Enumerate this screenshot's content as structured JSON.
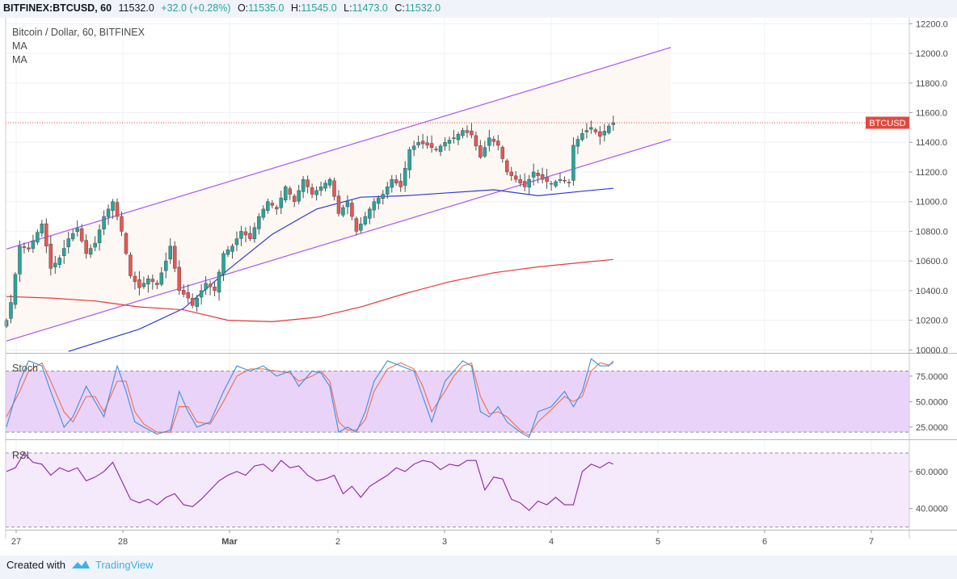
{
  "header": {
    "symbol": "BITFINEX:BTCUSD, 60",
    "last": "11532.0",
    "change": "+32.0 (+0.28%)",
    "o_label": "O:",
    "o_value": "11535.0",
    "h_label": "H:",
    "h_value": "11545.0",
    "l_label": "L:",
    "l_value": "11473.0",
    "c_label": "C:",
    "c_value": "11532.0"
  },
  "legend": {
    "title": "Bitcoin / Dollar, 60, BITFINEX",
    "ma1": "MA",
    "ma2": "MA",
    "stoch": "Stoch",
    "rsi": "RSI"
  },
  "price_tag": "BTCUSD",
  "footer": {
    "created_with": "Created with",
    "brand": "TradingView"
  },
  "colors": {
    "up": "#26a69a",
    "down": "#ef5350",
    "channel": "#a855f7",
    "ma_fast": "#2e3ad6",
    "ma_slow": "#e53935",
    "stoch_k": "#3d8de0",
    "stoch_d": "#f06d4d",
    "rsi": "#8e24aa",
    "band_stoch": "#e6cbf8",
    "band_rsi": "#f3e5fb"
  },
  "chart_data": [
    {
      "type": "candlestick",
      "title": "Bitcoin / Dollar, 60, BITFINEX",
      "x_ticks": [
        "27",
        "28",
        "Mar",
        "2",
        "3",
        "4",
        "5",
        "6",
        "7"
      ],
      "y_ticks": [
        10000,
        10200,
        10400,
        10600,
        10800,
        11000,
        11200,
        11400,
        11600,
        11800,
        12000,
        12200
      ],
      "y_tick_labels": [
        "10000.0",
        "10200.0",
        "10400.0",
        "10600.0",
        "10800.0",
        "11000.0",
        "11200.0",
        "11400.0",
        "11600.0",
        "11800.0",
        "12000.0",
        "12200.0"
      ],
      "ylim": [
        9980,
        12240
      ],
      "last_price": 11532,
      "anchors": [
        [
          0,
          10200
        ],
        [
          1,
          10320
        ],
        [
          3,
          10700
        ],
        [
          5,
          10680
        ],
        [
          8,
          10850
        ],
        [
          10,
          10550
        ],
        [
          12,
          10620
        ],
        [
          14,
          10750
        ],
        [
          16,
          10820
        ],
        [
          18,
          10650
        ],
        [
          20,
          10720
        ],
        [
          22,
          10900
        ],
        [
          24,
          11000
        ],
        [
          26,
          10800
        ],
        [
          28,
          10500
        ],
        [
          30,
          10420
        ],
        [
          32,
          10480
        ],
        [
          34,
          10440
        ],
        [
          36,
          10600
        ],
        [
          37,
          10700
        ],
        [
          39,
          10400
        ],
        [
          41,
          10350
        ],
        [
          42,
          10300
        ],
        [
          45,
          10450
        ],
        [
          47,
          10400
        ],
        [
          49,
          10650
        ],
        [
          51,
          10700
        ],
        [
          53,
          10800
        ],
        [
          55,
          10750
        ],
        [
          57,
          10900
        ],
        [
          59,
          11000
        ],
        [
          61,
          10950
        ],
        [
          63,
          11100
        ],
        [
          65,
          11000
        ],
        [
          67,
          11150
        ],
        [
          69,
          11050
        ],
        [
          71,
          11100
        ],
        [
          73,
          11150
        ],
        [
          75,
          10920
        ],
        [
          77,
          11000
        ],
        [
          79,
          10800
        ],
        [
          81,
          10900
        ],
        [
          83,
          11000
        ],
        [
          85,
          11050
        ],
        [
          87,
          11150
        ],
        [
          89,
          11100
        ],
        [
          91,
          11350
        ],
        [
          93,
          11400
        ],
        [
          95,
          11380
        ],
        [
          97,
          11350
        ],
        [
          99,
          11400
        ],
        [
          101,
          11430
        ],
        [
          103,
          11480
        ],
        [
          105,
          11450
        ],
        [
          107,
          11300
        ],
        [
          109,
          11430
        ],
        [
          111,
          11380
        ],
        [
          113,
          11200
        ],
        [
          115,
          11150
        ],
        [
          117,
          11100
        ],
        [
          119,
          11200
        ],
        [
          121,
          11150
        ],
        [
          123,
          11120
        ],
        [
          125,
          11150
        ],
        [
          127,
          11130
        ],
        [
          128,
          11380
        ],
        [
          130,
          11460
        ],
        [
          132,
          11500
        ],
        [
          134,
          11440
        ],
        [
          136,
          11510
        ],
        [
          137,
          11532
        ]
      ],
      "channel": {
        "upper": [
          [
            0,
            10680
          ],
          [
            150,
            12040
          ]
        ],
        "lower": [
          [
            0,
            10060
          ],
          [
            150,
            11420
          ]
        ]
      },
      "ma_fast": [
        [
          14,
          9990
        ],
        [
          30,
          10140
        ],
        [
          40,
          10280
        ],
        [
          50,
          10540
        ],
        [
          60,
          10780
        ],
        [
          70,
          10950
        ],
        [
          80,
          11030
        ],
        [
          90,
          11040
        ],
        [
          100,
          11060
        ],
        [
          110,
          11080
        ],
        [
          120,
          11040
        ],
        [
          130,
          11070
        ],
        [
          137,
          11090
        ]
      ],
      "ma_slow": [
        [
          0,
          10360
        ],
        [
          10,
          10350
        ],
        [
          20,
          10330
        ],
        [
          30,
          10290
        ],
        [
          40,
          10270
        ],
        [
          50,
          10200
        ],
        [
          60,
          10190
        ],
        [
          70,
          10220
        ],
        [
          80,
          10290
        ],
        [
          90,
          10380
        ],
        [
          100,
          10460
        ],
        [
          110,
          10520
        ],
        [
          120,
          10560
        ],
        [
          130,
          10590
        ],
        [
          137,
          10610
        ]
      ]
    },
    {
      "type": "line",
      "title": "Stoch",
      "y_ticks": [
        25,
        50,
        75
      ],
      "y_tick_labels": [
        "25.0000",
        "50.0000",
        "75.0000"
      ],
      "ylim": [
        13,
        97
      ],
      "band": [
        20,
        80
      ],
      "series": [
        {
          "values": [
            [
              0,
              25
            ],
            [
              3,
              70
            ],
            [
              5,
              90
            ],
            [
              8,
              85
            ],
            [
              10,
              60
            ],
            [
              13,
              25
            ],
            [
              15,
              35
            ],
            [
              18,
              65
            ],
            [
              20,
              50
            ],
            [
              22,
              35
            ],
            [
              25,
              85
            ],
            [
              27,
              60
            ],
            [
              29,
              30
            ],
            [
              31,
              25
            ],
            [
              34,
              18
            ],
            [
              37,
              22
            ],
            [
              39,
              60
            ],
            [
              41,
              40
            ],
            [
              43,
              25
            ],
            [
              46,
              30
            ],
            [
              49,
              60
            ],
            [
              52,
              85
            ],
            [
              55,
              80
            ],
            [
              58,
              85
            ],
            [
              61,
              75
            ],
            [
              64,
              80
            ],
            [
              66,
              65
            ],
            [
              69,
              80
            ],
            [
              71,
              78
            ],
            [
              73,
              65
            ],
            [
              75,
              20
            ],
            [
              77,
              25
            ],
            [
              79,
              20
            ],
            [
              81,
              40
            ],
            [
              83,
              70
            ],
            [
              86,
              90
            ],
            [
              89,
              85
            ],
            [
              92,
              80
            ],
            [
              94,
              55
            ],
            [
              96,
              30
            ],
            [
              99,
              70
            ],
            [
              101,
              80
            ],
            [
              103,
              90
            ],
            [
              105,
              85
            ],
            [
              107,
              40
            ],
            [
              109,
              35
            ],
            [
              111,
              45
            ],
            [
              113,
              30
            ],
            [
              116,
              20
            ],
            [
              118,
              15
            ],
            [
              120,
              40
            ],
            [
              123,
              45
            ],
            [
              126,
              60
            ],
            [
              128,
              45
            ],
            [
              130,
              60
            ],
            [
              132,
              92
            ],
            [
              134,
              85
            ],
            [
              136,
              85
            ],
            [
              137,
              90
            ]
          ]
        },
        {
          "values": [
            [
              0,
              35
            ],
            [
              3,
              60
            ],
            [
              5,
              80
            ],
            [
              8,
              88
            ],
            [
              10,
              70
            ],
            [
              13,
              40
            ],
            [
              15,
              30
            ],
            [
              18,
              55
            ],
            [
              20,
              55
            ],
            [
              22,
              40
            ],
            [
              25,
              70
            ],
            [
              27,
              70
            ],
            [
              29,
              40
            ],
            [
              31,
              28
            ],
            [
              34,
              20
            ],
            [
              37,
              20
            ],
            [
              39,
              45
            ],
            [
              41,
              45
            ],
            [
              43,
              30
            ],
            [
              46,
              28
            ],
            [
              49,
              50
            ],
            [
              52,
              75
            ],
            [
              55,
              82
            ],
            [
              58,
              82
            ],
            [
              61,
              80
            ],
            [
              64,
              78
            ],
            [
              66,
              70
            ],
            [
              69,
              75
            ],
            [
              71,
              80
            ],
            [
              73,
              70
            ],
            [
              75,
              30
            ],
            [
              77,
              22
            ],
            [
              79,
              22
            ],
            [
              81,
              32
            ],
            [
              83,
              60
            ],
            [
              86,
              82
            ],
            [
              89,
              88
            ],
            [
              92,
              82
            ],
            [
              94,
              65
            ],
            [
              96,
              40
            ],
            [
              99,
              60
            ],
            [
              101,
              75
            ],
            [
              103,
              85
            ],
            [
              105,
              88
            ],
            [
              107,
              55
            ],
            [
              109,
              38
            ],
            [
              111,
              40
            ],
            [
              113,
              35
            ],
            [
              116,
              22
            ],
            [
              118,
              17
            ],
            [
              120,
              30
            ],
            [
              123,
              42
            ],
            [
              126,
              55
            ],
            [
              128,
              50
            ],
            [
              130,
              55
            ],
            [
              132,
              80
            ],
            [
              134,
              88
            ],
            [
              136,
              86
            ],
            [
              137,
              88
            ]
          ]
        }
      ]
    },
    {
      "type": "line",
      "title": "RSI",
      "y_ticks": [
        40,
        60
      ],
      "y_tick_labels": [
        "40.0000",
        "60.0000"
      ],
      "ylim": [
        28.5,
        77
      ],
      "band": [
        30,
        70
      ],
      "series": [
        {
          "values": [
            [
              0,
              60
            ],
            [
              2,
              62
            ],
            [
              4,
              70
            ],
            [
              6,
              65
            ],
            [
              8,
              64
            ],
            [
              10,
              58
            ],
            [
              12,
              62
            ],
            [
              14,
              60
            ],
            [
              16,
              62
            ],
            [
              18,
              55
            ],
            [
              20,
              57
            ],
            [
              22,
              60
            ],
            [
              24,
              65
            ],
            [
              26,
              55
            ],
            [
              28,
              45
            ],
            [
              30,
              43
            ],
            [
              32,
              45
            ],
            [
              34,
              42
            ],
            [
              36,
              46
            ],
            [
              38,
              48
            ],
            [
              40,
              42
            ],
            [
              42,
              41
            ],
            [
              44,
              45
            ],
            [
              46,
              50
            ],
            [
              48,
              55
            ],
            [
              50,
              58
            ],
            [
              52,
              60
            ],
            [
              54,
              58
            ],
            [
              56,
              63
            ],
            [
              58,
              64
            ],
            [
              60,
              60
            ],
            [
              62,
              66
            ],
            [
              64,
              62
            ],
            [
              66,
              63
            ],
            [
              68,
              58
            ],
            [
              70,
              55
            ],
            [
              72,
              56
            ],
            [
              74,
              58
            ],
            [
              76,
              48
            ],
            [
              78,
              52
            ],
            [
              80,
              46
            ],
            [
              82,
              52
            ],
            [
              84,
              55
            ],
            [
              86,
              58
            ],
            [
              88,
              62
            ],
            [
              90,
              60
            ],
            [
              92,
              64
            ],
            [
              94,
              66
            ],
            [
              96,
              65
            ],
            [
              98,
              61
            ],
            [
              100,
              64
            ],
            [
              102,
              63
            ],
            [
              104,
              66
            ],
            [
              106,
              66
            ],
            [
              108,
              50
            ],
            [
              110,
              57
            ],
            [
              112,
              56
            ],
            [
              114,
              45
            ],
            [
              116,
              43
            ],
            [
              118,
              39
            ],
            [
              120,
              44
            ],
            [
              122,
              42
            ],
            [
              124,
              46
            ],
            [
              126,
              42
            ],
            [
              128,
              42
            ],
            [
              130,
              60
            ],
            [
              132,
              64
            ],
            [
              134,
              62
            ],
            [
              136,
              65
            ],
            [
              137,
              64
            ]
          ]
        }
      ]
    }
  ]
}
